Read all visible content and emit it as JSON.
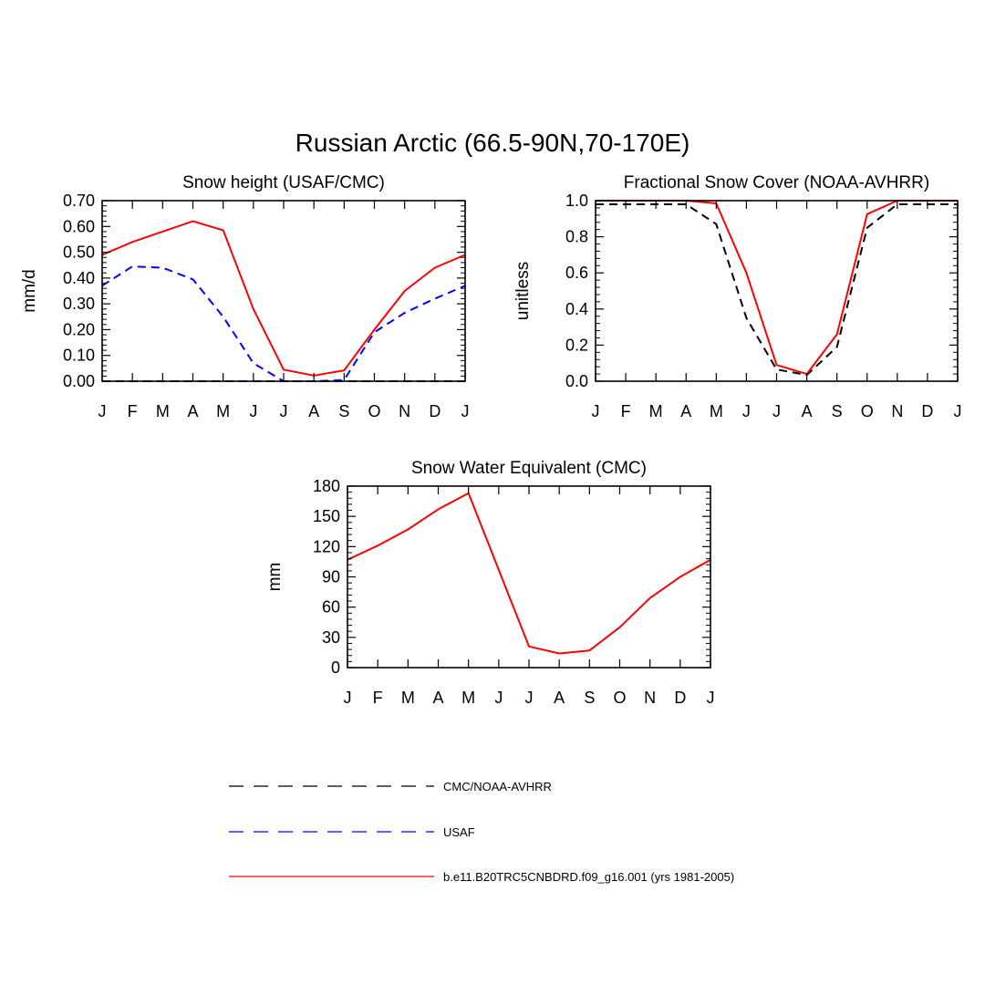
{
  "figure": {
    "title": "Russian Arctic (66.5-90N,70-170E)"
  },
  "months": [
    "J",
    "F",
    "M",
    "A",
    "M",
    "J",
    "J",
    "A",
    "S",
    "O",
    "N",
    "D",
    "J"
  ],
  "legend": {
    "entries": [
      {
        "label": "CMC/NOAA-AVHRR",
        "color": "#000000",
        "style": "dash"
      },
      {
        "label": "USAF",
        "color": "#0000ff",
        "style": "dash"
      },
      {
        "label": "b.e11.B20TRC5CNBDRD.f09_g16.001 (yrs 1981-2005)",
        "color": "#ff0000",
        "style": "solid"
      }
    ]
  },
  "chart_data": [
    {
      "type": "line",
      "title": "Snow height (USAF/CMC)",
      "xlabel": "",
      "ylabel": "mm/d",
      "categories": [
        "J",
        "F",
        "M",
        "A",
        "M",
        "J",
        "J",
        "A",
        "S",
        "O",
        "N",
        "D",
        "J"
      ],
      "ylim": [
        0,
        0.7
      ],
      "yticks": [
        0,
        0.1,
        0.2,
        0.3,
        0.4,
        0.5,
        0.6,
        0.7
      ],
      "ytick_labels": [
        "0.00",
        "0.10",
        "0.20",
        "0.30",
        "0.40",
        "0.50",
        "0.60",
        "0.70"
      ],
      "series": [
        {
          "name": "CMC/NOAA-AVHRR",
          "color": "#000000",
          "style": "dash",
          "values": [
            0,
            0,
            0,
            0,
            0,
            0,
            0,
            0,
            0,
            0,
            0,
            0,
            0
          ]
        },
        {
          "name": "USAF",
          "color": "#0000ff",
          "style": "dash",
          "values": [
            0.37,
            0.445,
            0.44,
            0.395,
            0.25,
            0.07,
            0.0,
            0.0,
            0.005,
            0.19,
            0.265,
            0.32,
            0.37
          ]
        },
        {
          "name": "b.e11.B20TRC5CNBDRD.f09_g16.001 (yrs 1981-2005)",
          "color": "#ff0000",
          "style": "solid",
          "values": [
            0.49,
            0.54,
            0.58,
            0.62,
            0.585,
            0.28,
            0.045,
            0.022,
            0.042,
            0.2,
            0.35,
            0.44,
            0.49
          ]
        }
      ]
    },
    {
      "type": "line",
      "title": "Fractional Snow Cover (NOAA-AVHRR)",
      "xlabel": "",
      "ylabel": "unitless",
      "categories": [
        "J",
        "F",
        "M",
        "A",
        "M",
        "J",
        "J",
        "A",
        "S",
        "O",
        "N",
        "D",
        "J"
      ],
      "ylim": [
        0,
        1.0
      ],
      "yticks": [
        0,
        0.2,
        0.4,
        0.6,
        0.8,
        1.0
      ],
      "ytick_labels": [
        "0.0",
        "0.2",
        "0.4",
        "0.6",
        "0.8",
        "1.0"
      ],
      "series": [
        {
          "name": "CMC/NOAA-AVHRR",
          "color": "#000000",
          "style": "dash",
          "values": [
            0.98,
            0.98,
            0.98,
            0.98,
            0.87,
            0.35,
            0.065,
            0.035,
            0.19,
            0.85,
            0.98,
            0.98,
            0.98
          ]
        },
        {
          "name": "b.e11.B20TRC5CNBDRD.f09_g16.001 (yrs 1981-2005)",
          "color": "#ff0000",
          "style": "solid",
          "values": [
            1.0,
            1.0,
            1.0,
            1.0,
            0.985,
            0.6,
            0.09,
            0.04,
            0.26,
            0.925,
            1.0,
            1.0,
            1.0
          ]
        }
      ]
    },
    {
      "type": "line",
      "title": "Snow Water Equivalent (CMC)",
      "xlabel": "",
      "ylabel": "mm",
      "categories": [
        "J",
        "F",
        "M",
        "A",
        "M",
        "J",
        "J",
        "A",
        "S",
        "O",
        "N",
        "D",
        "J"
      ],
      "ylim": [
        0,
        180
      ],
      "yticks": [
        0,
        30,
        60,
        90,
        120,
        150,
        180
      ],
      "ytick_labels": [
        "0",
        "30",
        "60",
        "90",
        "120",
        "150",
        "180"
      ],
      "series": [
        {
          "name": "b.e11.B20TRC5CNBDRD.f09_g16.001 (yrs 1981-2005)",
          "color": "#ff0000",
          "style": "solid",
          "values": [
            107,
            121,
            137,
            157,
            173,
            97,
            21,
            14,
            17,
            40,
            69,
            90,
            107
          ]
        }
      ]
    }
  ]
}
